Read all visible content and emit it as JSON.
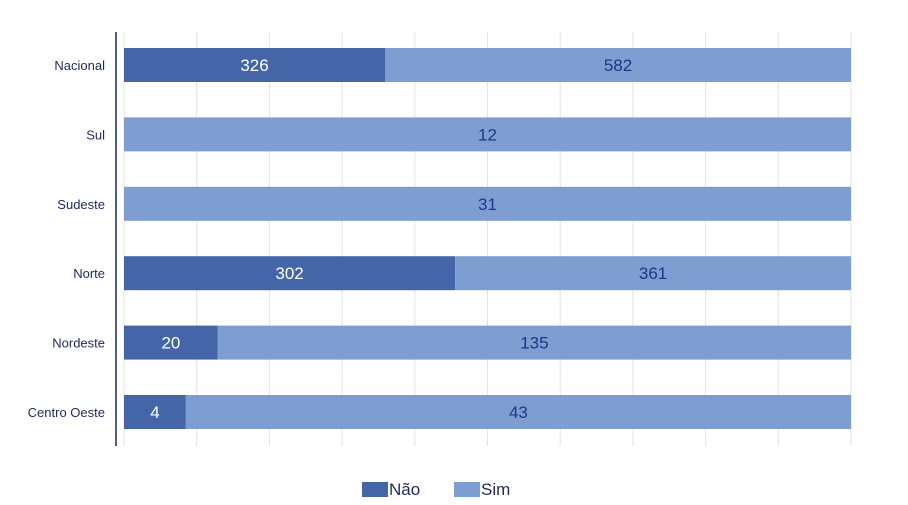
{
  "chart_data": {
    "type": "bar",
    "orientation": "horizontal",
    "stacking": "percent",
    "categories": [
      "Nacional",
      "Sul",
      "Sudeste",
      "Norte",
      "Nordeste",
      "Centro Oeste"
    ],
    "series": [
      {
        "name": "Não",
        "values": [
          326,
          0,
          0,
          302,
          20,
          4
        ],
        "color": "#4466a9"
      },
      {
        "name": "Sim",
        "values": [
          582,
          12,
          31,
          361,
          135,
          43
        ],
        "color": "#7e9dd1"
      }
    ],
    "xlim": [
      0,
      100
    ],
    "grid": true,
    "legend_position": "bottom"
  }
}
